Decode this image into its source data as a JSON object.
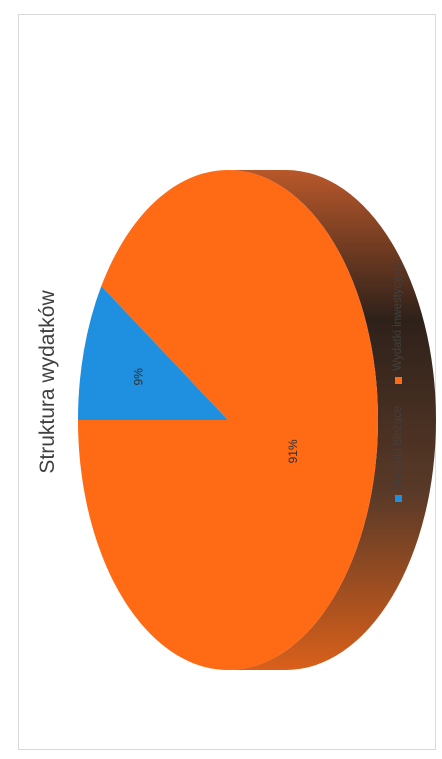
{
  "chart_data": {
    "type": "pie",
    "title": "Struktura wydatków",
    "categories": [
      "Wydatki bieżące",
      "Wydatki inwestycyjne"
    ],
    "values": [
      9,
      91
    ],
    "data_labels": [
      "9%",
      "91%"
    ],
    "colors": [
      "#1f8fe0",
      "#ff6a14"
    ],
    "legend_position": "bottom",
    "style": "3d"
  }
}
